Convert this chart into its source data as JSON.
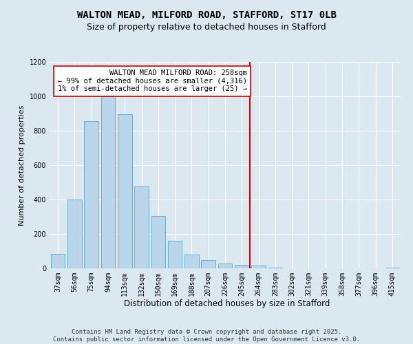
{
  "title": "WALTON MEAD, MILFORD ROAD, STAFFORD, ST17 0LB",
  "subtitle": "Size of property relative to detached houses in Stafford",
  "xlabel": "Distribution of detached houses by size in Stafford",
  "ylabel": "Number of detached properties",
  "categories": [
    "37sqm",
    "56sqm",
    "75sqm",
    "94sqm",
    "113sqm",
    "132sqm",
    "150sqm",
    "169sqm",
    "188sqm",
    "207sqm",
    "226sqm",
    "245sqm",
    "264sqm",
    "283sqm",
    "302sqm",
    "321sqm",
    "339sqm",
    "358sqm",
    "377sqm",
    "396sqm",
    "415sqm"
  ],
  "values": [
    85,
    400,
    855,
    1000,
    895,
    475,
    305,
    160,
    80,
    50,
    30,
    20,
    15,
    5,
    2,
    1,
    0,
    0,
    0,
    2,
    5
  ],
  "bar_color": "#bad4ea",
  "bar_edge_color": "#6aaed6",
  "vline_color": "#cc0000",
  "annotation_text": "WALTON MEAD MILFORD ROAD: 258sqm\n← 99% of detached houses are smaller (4,316)\n1% of semi-detached houses are larger (25) →",
  "annotation_box_color": "#ffffff",
  "annotation_box_edge": "#cc0000",
  "ylim": [
    0,
    1200
  ],
  "yticks": [
    0,
    200,
    400,
    600,
    800,
    1000,
    1200
  ],
  "bg_color": "#dce8f0",
  "plot_bg_color": "#dce8f0",
  "footer": "Contains HM Land Registry data © Crown copyright and database right 2025.\nContains public sector information licensed under the Open Government Licence v3.0.",
  "title_fontsize": 10,
  "subtitle_fontsize": 9,
  "xlabel_fontsize": 8.5,
  "ylabel_fontsize": 8,
  "tick_fontsize": 7,
  "annotation_fontsize": 7.5,
  "footer_fontsize": 6.5
}
